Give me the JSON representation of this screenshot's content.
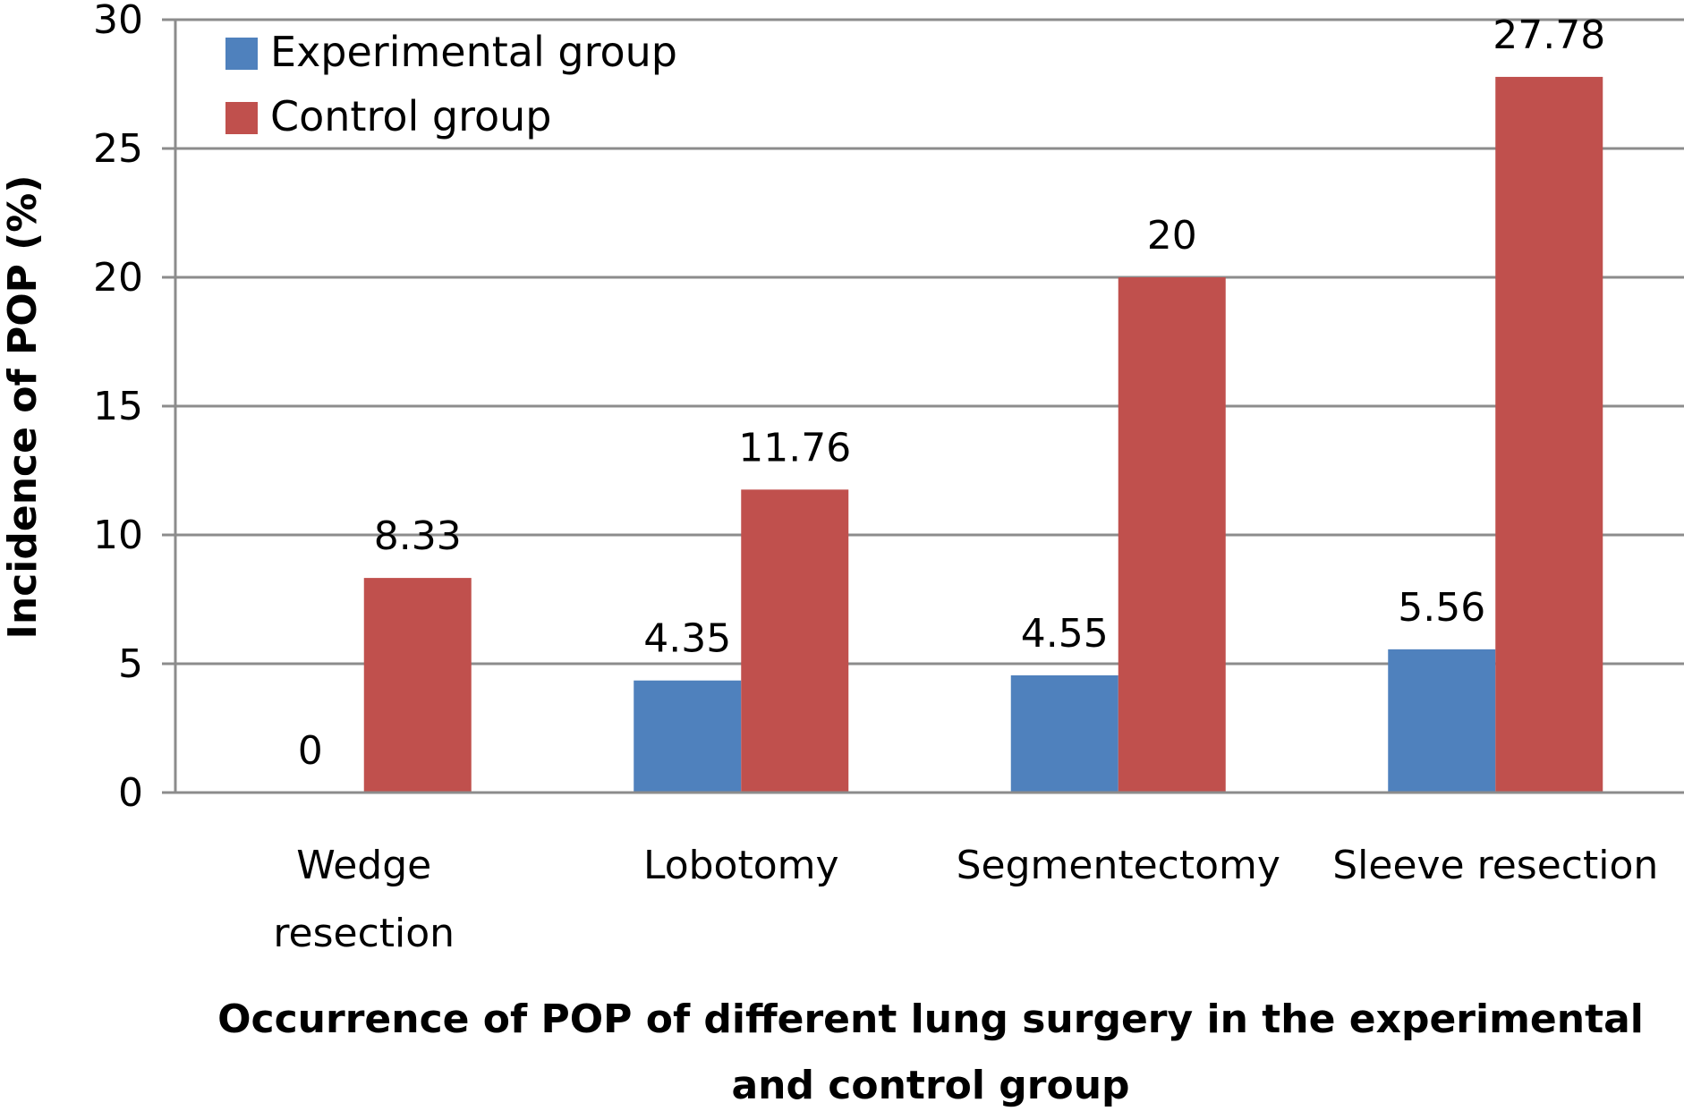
{
  "chart_data": {
    "type": "bar",
    "categories": [
      [
        "Wedge",
        "resection"
      ],
      [
        "Lobotomy"
      ],
      [
        "Segmentectomy"
      ],
      [
        "Sleeve resection"
      ]
    ],
    "series": [
      {
        "name": "Experimental group",
        "color": "#4F81BD",
        "values": [
          0,
          4.35,
          4.55,
          5.56
        ],
        "labels": [
          "0",
          "4.35",
          "4.55",
          "5.56"
        ]
      },
      {
        "name": "Control group",
        "color": "#C0504D",
        "values": [
          8.33,
          11.76,
          20,
          27.78
        ],
        "labels": [
          "8.33",
          "11.76",
          "20",
          "27.78"
        ]
      }
    ],
    "ylim": [
      0,
      30
    ],
    "yticks": [
      0,
      5,
      10,
      15,
      20,
      25,
      30
    ],
    "ylabel": "Incidence of POP (%)",
    "xlabel": [
      "Occurrence of POP of different lung surgery in the experimental",
      "and control group"
    ],
    "grid": true,
    "legend": "top-left",
    "gridColor": "#8c8c8c",
    "axisColor": "#8c8c8c"
  }
}
